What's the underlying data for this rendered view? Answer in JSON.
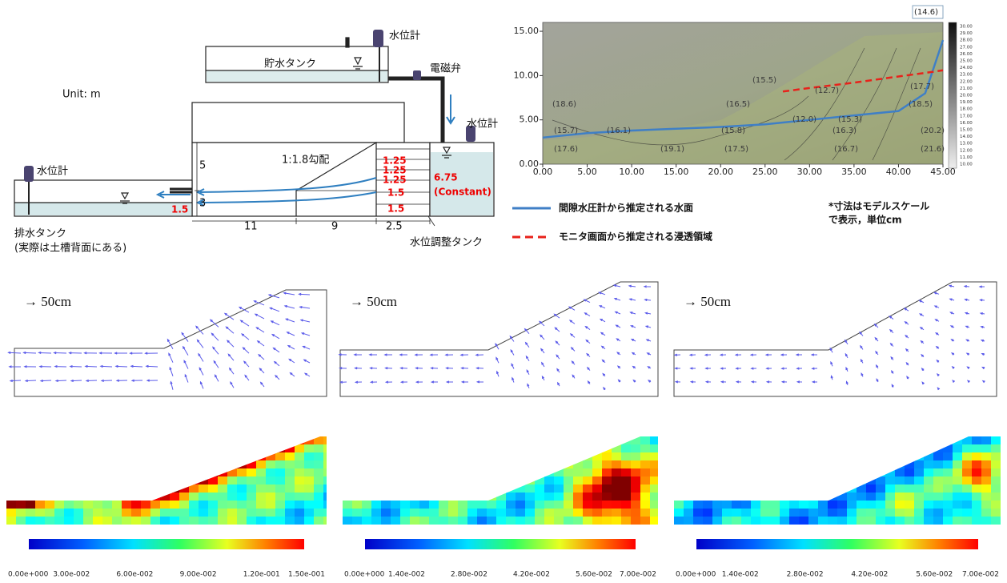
{
  "diagram": {
    "storage_tank": "貯水タンク",
    "gauge_top": "水位計",
    "valve": "電磁弁",
    "gauge_right": "水位計",
    "gauge_left": "水位計",
    "unit": "Unit: m",
    "slope": "1:1.8勾配",
    "dims": [
      5,
      3,
      1.5,
      11,
      9,
      2.5
    ],
    "red_dims": [
      1.25,
      1.25,
      1.25,
      1.5,
      1.5
    ],
    "head": 6.75,
    "head_note": "(Constant)",
    "drain_tank": "排水タンク",
    "drain_note": "(実際は土槽背面にある)",
    "adjust_tank": "水位調整タンク"
  },
  "chart_data": {
    "type": "line",
    "x": [
      0,
      5,
      10,
      15,
      20,
      25,
      27,
      30,
      35,
      40,
      43,
      45
    ],
    "series": [
      {
        "name": "間隙水圧計から推定される水面",
        "color": "#3f7fc6",
        "dashed": false,
        "values": [
          3.0,
          3.5,
          3.8,
          4.0,
          4.2,
          4.5,
          4.7,
          5.0,
          5.5,
          6.0,
          8.0,
          14.0
        ]
      },
      {
        "name": "モニタ画面から推定される浸透領域",
        "color": "#e8221b",
        "dashed": true,
        "values": [
          null,
          null,
          null,
          null,
          null,
          null,
          8.2,
          8.6,
          9.2,
          9.9,
          10.3,
          10.6
        ]
      }
    ],
    "xlim": [
      0,
      45
    ],
    "ylim": [
      0,
      16
    ],
    "xticks": [
      {
        "value": 0,
        "label": "0.00"
      },
      {
        "value": 5,
        "label": "5.00"
      },
      {
        "value": 10,
        "label": "10.00"
      },
      {
        "value": 15,
        "label": "15.00"
      },
      {
        "value": 20,
        "label": "20.00"
      },
      {
        "value": 25,
        "label": "25.00"
      },
      {
        "value": 30,
        "label": "30.00"
      },
      {
        "value": 35,
        "label": "35.00"
      },
      {
        "value": 40,
        "label": "40.00"
      },
      {
        "value": 45,
        "label": "45.00"
      }
    ],
    "yticks": [
      {
        "value": 0,
        "label": "0.00"
      },
      {
        "value": 5,
        "label": "5.00"
      },
      {
        "value": 10,
        "label": "10.00"
      },
      {
        "value": 15,
        "label": "15.00"
      }
    ],
    "annotations": [
      "(14.6)",
      "(15.5)",
      "(17.7)",
      "(12.7)",
      "(18.5)",
      "(18.6)",
      "(16.5)",
      "(12.0)",
      "(15.3)",
      "(15.7)",
      "(16.1)",
      "(15.8)",
      "(16.3)",
      "(20.2)",
      "(17.6)",
      "(19.1)",
      "(17.5)",
      "(16.7)",
      "(21.6)"
    ],
    "colorbar_labels": [
      "30.00",
      "29.00",
      "28.00",
      "27.00",
      "26.00",
      "25.00",
      "24.00",
      "23.00",
      "22.00",
      "21.00",
      "20.00",
      "19.00",
      "18.00",
      "17.00",
      "16.00",
      "15.00",
      "14.00",
      "13.00",
      "12.00",
      "11.00",
      "10.00"
    ],
    "note": [
      "*寸法はモデルスケール",
      "で表示，単位cm"
    ]
  },
  "panels": [
    {
      "scale": "→ 50cm",
      "colorbar": [
        "0.00e+000",
        "3.00e-002",
        "6.00e-002",
        "9.00e-002",
        "1.20e-001",
        "1.50e-001"
      ]
    },
    {
      "scale": "→ 50cm",
      "colorbar": [
        "0.00e+000",
        "1.40e-002",
        "2.80e-002",
        "4.20e-002",
        "5.60e-002",
        "7.00e-002"
      ]
    },
    {
      "scale": "→ 50cm",
      "colorbar": [
        "0.00e+000",
        "1.40e-002",
        "2.80e-002",
        "4.20e-002",
        "5.60e-002",
        "7.00e-002"
      ]
    }
  ]
}
